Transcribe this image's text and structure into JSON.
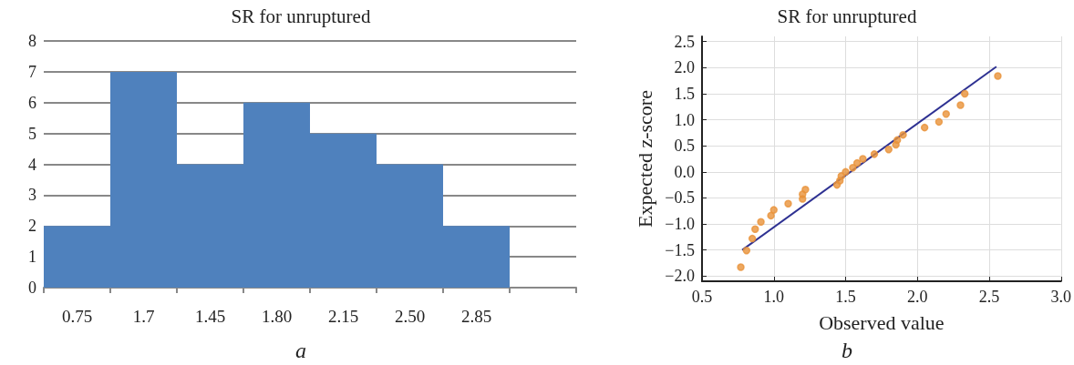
{
  "chart_data": [
    {
      "type": "bar",
      "title": "SR for unruptured",
      "categories": [
        "0.75",
        "1.7",
        "1.45",
        "1.80",
        "2.15",
        "2.50",
        "2.85",
        null
      ],
      "values": [
        2,
        7,
        4,
        6,
        5,
        4,
        2,
        null
      ],
      "color": "#4f81bd",
      "ylim": [
        0,
        8
      ],
      "yticks": [
        0,
        1,
        2,
        3,
        4,
        5,
        6,
        7,
        8
      ],
      "grid": "y",
      "annotations": [
        "a"
      ]
    },
    {
      "type": "scatter",
      "title": "SR for unruptured",
      "xlabel": "Observed value",
      "ylabel": "Expected z-score",
      "xlim": [
        0.5,
        3.0
      ],
      "ylim": [
        -2.1,
        2.6
      ],
      "xticks": [
        {
          "value": 0.5,
          "label": "0.5"
        },
        {
          "value": 1,
          "label": "1.0"
        },
        {
          "value": 1.5,
          "label": "1.5"
        },
        {
          "value": 2,
          "label": "2.0"
        },
        {
          "value": 2.5,
          "label": "2.5"
        },
        {
          "value": 3,
          "label": "3.0"
        }
      ],
      "yticks": [
        {
          "value": -2,
          "label": "−2.0"
        },
        {
          "value": -1.5,
          "label": "−1.5"
        },
        {
          "value": -1,
          "label": "−1.0"
        },
        {
          "value": -0.5,
          "label": "−0.5"
        },
        {
          "value": 0,
          "label": "0.0"
        },
        {
          "value": 0.5,
          "label": "0.5"
        },
        {
          "value": 1,
          "label": "1.0"
        },
        {
          "value": 1.5,
          "label": "1.5"
        },
        {
          "value": 2,
          "label": "2.0"
        },
        {
          "value": 2.5,
          "label": "2.5"
        }
      ],
      "grid": true,
      "marker": "circle",
      "annotations": [
        "b"
      ],
      "series": [
        {
          "type": "scatter",
          "color": "#e8923a",
          "x": [
            0.77,
            0.81,
            0.85,
            0.87,
            0.91,
            0.98,
            1.0,
            1.1,
            1.2,
            1.2,
            1.22,
            1.44,
            1.46,
            1.47,
            1.5,
            1.55,
            1.58,
            1.62,
            1.7,
            1.8,
            1.85,
            1.86,
            1.9,
            2.05,
            2.15,
            2.2,
            2.3,
            2.33,
            2.56
          ],
          "values": [
            -1.83,
            -1.51,
            -1.28,
            -1.1,
            -0.96,
            -0.84,
            -0.73,
            -0.61,
            -0.52,
            -0.43,
            -0.34,
            -0.25,
            -0.17,
            -0.08,
            0.0,
            0.08,
            0.17,
            0.25,
            0.34,
            0.43,
            0.52,
            0.61,
            0.71,
            0.85,
            0.96,
            1.11,
            1.28,
            1.5,
            1.84
          ]
        },
        {
          "type": "line",
          "color": "#2e3192",
          "marker": "none",
          "x": [
            0.78,
            2.55
          ],
          "values": [
            -1.5,
            2.02
          ]
        }
      ]
    }
  ]
}
